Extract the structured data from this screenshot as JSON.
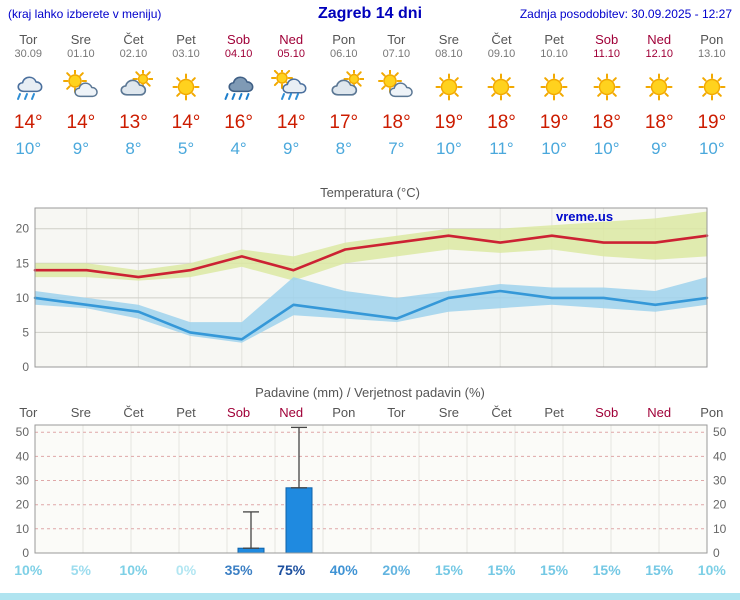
{
  "header": {
    "left_note": "(kraj lahko izberete v meniju)",
    "title": "Zagreb 14 dni",
    "updated": "Zadnja posodobitev: 30.09.2025 - 12:27"
  },
  "watermark": "vreme.us",
  "colors": {
    "accent_blue": "#0000cc",
    "weekend_red": "#a00038",
    "high_temp_red": "#cc1c00",
    "low_temp_blue": "#4aa8dc"
  },
  "days": [
    {
      "day": "Tor",
      "date": "30.09",
      "weekend": false,
      "icon": "rain",
      "high": "14°",
      "low": "10°",
      "prob": "10%",
      "prob_color": "#7ed0e6"
    },
    {
      "day": "Sre",
      "date": "01.10",
      "weekend": false,
      "icon": "partly-cloudy",
      "high": "14°",
      "low": "9°",
      "prob": "5%",
      "prob_color": "#9cdcee"
    },
    {
      "day": "Čet",
      "date": "02.10",
      "weekend": false,
      "icon": "mostly-cloudy",
      "high": "13°",
      "low": "8°",
      "prob": "10%",
      "prob_color": "#7ed0e6"
    },
    {
      "day": "Pet",
      "date": "03.10",
      "weekend": false,
      "icon": "sunny",
      "high": "14°",
      "low": "5°",
      "prob": "0%",
      "prob_color": "#b2e6f2"
    },
    {
      "day": "Sob",
      "date": "04.10",
      "weekend": true,
      "icon": "heavy-rain",
      "high": "16°",
      "low": "4°",
      "prob": "35%",
      "prob_color": "#3b7fc4"
    },
    {
      "day": "Ned",
      "date": "05.10",
      "weekend": true,
      "icon": "showers",
      "high": "14°",
      "low": "9°",
      "prob": "75%",
      "prob_color": "#1c4f9e"
    },
    {
      "day": "Pon",
      "date": "06.10",
      "weekend": false,
      "icon": "mostly-cloudy",
      "high": "17°",
      "low": "8°",
      "prob": "40%",
      "prob_color": "#3f93d4"
    },
    {
      "day": "Tor",
      "date": "07.10",
      "weekend": false,
      "icon": "partly-cloudy",
      "high": "18°",
      "low": "7°",
      "prob": "20%",
      "prob_color": "#62b4e0"
    },
    {
      "day": "Sre",
      "date": "08.10",
      "weekend": false,
      "icon": "sunny",
      "high": "19°",
      "low": "10°",
      "prob": "15%",
      "prob_color": "#74c8e4"
    },
    {
      "day": "Čet",
      "date": "09.10",
      "weekend": false,
      "icon": "sunny",
      "high": "18°",
      "low": "11°",
      "prob": "15%",
      "prob_color": "#74c8e4"
    },
    {
      "day": "Pet",
      "date": "10.10",
      "weekend": false,
      "icon": "sunny",
      "high": "19°",
      "low": "10°",
      "prob": "15%",
      "prob_color": "#74c8e4"
    },
    {
      "day": "Sob",
      "date": "11.10",
      "weekend": true,
      "icon": "sunny",
      "high": "18°",
      "low": "10°",
      "prob": "15%",
      "prob_color": "#74c8e4"
    },
    {
      "day": "Ned",
      "date": "12.10",
      "weekend": true,
      "icon": "sunny",
      "high": "18°",
      "low": "9°",
      "prob": "15%",
      "prob_color": "#74c8e4"
    },
    {
      "day": "Pon",
      "date": "13.10",
      "weekend": false,
      "icon": "sunny",
      "high": "19°",
      "low": "10°",
      "prob": "10%",
      "prob_color": "#7ed0e6"
    }
  ],
  "chart_data": [
    {
      "type": "line",
      "title": "Temperatura (°C)",
      "x": [
        "Tor 30.09",
        "Sre 01.10",
        "Čet 02.10",
        "Pet 03.10",
        "Sob 04.10",
        "Ned 05.10",
        "Pon 06.10",
        "Tor 07.10",
        "Sre 08.10",
        "Čet 09.10",
        "Pet 10.10",
        "Sob 11.10",
        "Ned 12.10",
        "Pon 13.10"
      ],
      "ylim": [
        0,
        23
      ],
      "yticks": [
        0,
        5,
        10,
        15,
        20
      ],
      "grid": true,
      "legend": "none",
      "series": [
        {
          "name": "max-temperature",
          "color": "#cc2233",
          "band_color": "#dce9a2",
          "values": [
            14,
            14,
            13,
            14,
            16,
            14,
            17,
            18,
            19,
            18,
            19,
            18,
            18,
            19
          ],
          "band_upper": [
            15,
            15,
            14,
            15,
            17,
            16,
            18,
            19,
            20,
            20,
            20.5,
            21,
            21.5,
            22.5
          ],
          "band_lower": [
            13,
            13,
            12.5,
            13,
            14.5,
            12.5,
            15,
            16,
            17,
            16.5,
            17,
            16,
            15.5,
            16
          ]
        },
        {
          "name": "min-temperature",
          "color": "#3598d8",
          "band_color": "#9fd2ec",
          "values": [
            10,
            9,
            8,
            5,
            4,
            9,
            8,
            7,
            10,
            11,
            10,
            10,
            9,
            10
          ],
          "band_upper": [
            11,
            10,
            9,
            6.5,
            6.5,
            13,
            11,
            10,
            11,
            12,
            11.5,
            11.5,
            11,
            13
          ],
          "band_lower": [
            9,
            8.5,
            7,
            4.5,
            3.5,
            7.5,
            7,
            6.5,
            8,
            8.5,
            9,
            8.5,
            8,
            9
          ]
        }
      ]
    },
    {
      "type": "bar",
      "title": "Padavine (mm) / Verjetnost padavin (%)",
      "categories": [
        "Tor",
        "Sre",
        "Čet",
        "Pet",
        "Sob",
        "Ned",
        "Pon",
        "Tor",
        "Sre",
        "Čet",
        "Pet",
        "Sob",
        "Ned",
        "Pon"
      ],
      "ylim": [
        0,
        53
      ],
      "yticks": [
        0,
        10,
        20,
        30,
        40,
        50
      ],
      "bar_color": "#1f8ae0",
      "bar_border": "#0f62a8",
      "values": [
        0,
        0,
        0,
        0,
        2,
        27,
        0,
        0,
        0,
        0,
        0,
        0,
        0,
        0
      ],
      "whisker_max": [
        0,
        0,
        0,
        0,
        17,
        52,
        0,
        0,
        0,
        0,
        0,
        0,
        0,
        0
      ],
      "probabilities": [
        "10%",
        "5%",
        "10%",
        "0%",
        "35%",
        "75%",
        "40%",
        "20%",
        "15%",
        "15%",
        "15%",
        "15%",
        "15%",
        "10%"
      ]
    }
  ]
}
